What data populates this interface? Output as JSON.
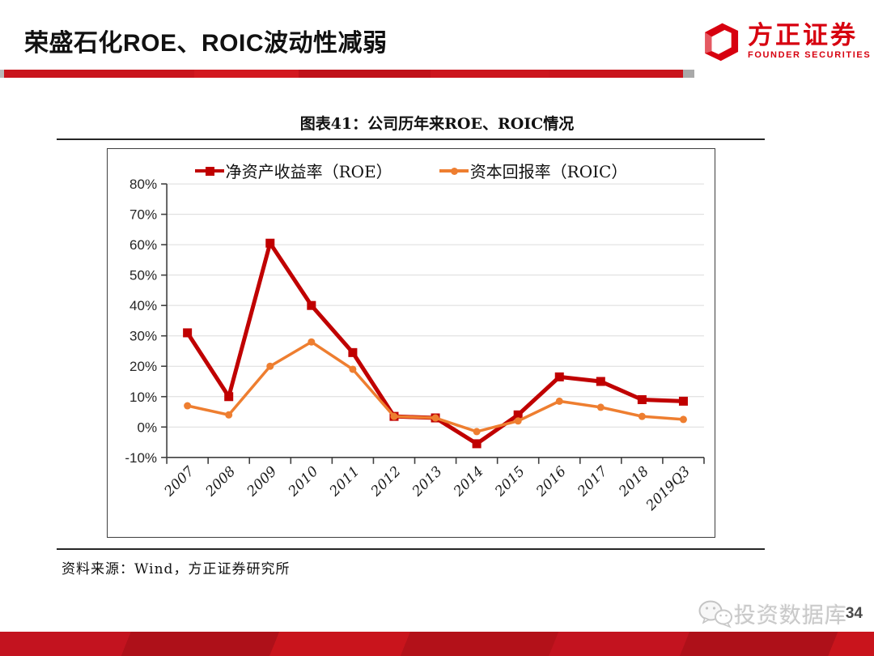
{
  "header": {
    "title": "荣盛石化ROE、ROIC波动性减弱"
  },
  "logo": {
    "name_cn": "方正证券",
    "name_en": "FOUNDER SECURITIES",
    "brand_color": "#d7000f"
  },
  "figure": {
    "title": "图表41：公司历年来ROE、ROIC情况"
  },
  "chart_data": {
    "type": "line",
    "title": "图表41：公司历年来ROE、ROIC情况",
    "categories": [
      "2007",
      "2008",
      "2009",
      "2010",
      "2011",
      "2012",
      "2013",
      "2014",
      "2015",
      "2016",
      "2017",
      "2018",
      "2019Q3"
    ],
    "series": [
      {
        "name": "净资产收益率（ROE）",
        "color": "#c00000",
        "marker": "square",
        "values": [
          31,
          10,
          60.5,
          40,
          24.5,
          3.5,
          3,
          -5.5,
          4,
          16.5,
          15,
          9,
          8.5
        ]
      },
      {
        "name": "资本回报率（ROIC）",
        "color": "#ee7e30",
        "marker": "circle",
        "values": [
          7,
          4,
          20,
          28,
          19,
          3.5,
          3,
          -1.5,
          2,
          8.5,
          6.5,
          3.5,
          2.5
        ]
      }
    ],
    "ylim": [
      -10,
      80
    ],
    "ytick_step": 10,
    "ytick_format": "percent",
    "grid": true,
    "legend_position": "top"
  },
  "footer": {
    "source": "资料来源：Wind，方正证券研究所"
  },
  "page": {
    "watermark": "投资数据库",
    "number": "34"
  }
}
